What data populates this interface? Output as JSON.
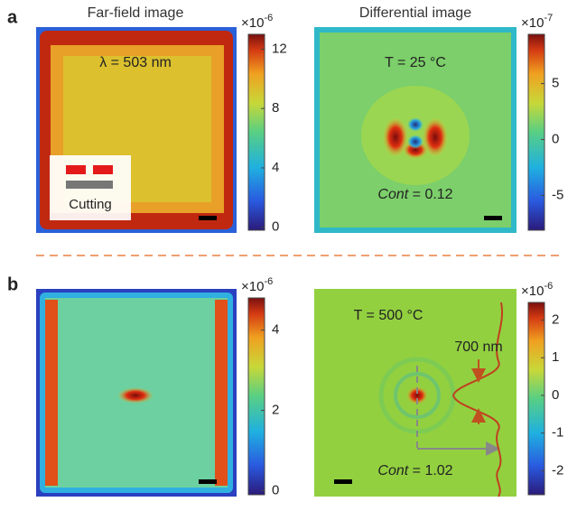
{
  "panels": [
    {
      "letter": "a",
      "images": [
        {
          "title": "Far-field image",
          "annotation": "λ = 503 nm",
          "inset_label": "Cutting",
          "colorbar": {
            "scale": "×10",
            "power": "-6",
            "clim": [
              -0.2,
              13
            ],
            "ticks": [
              0,
              4,
              8,
              12
            ]
          }
        },
        {
          "title": "Differential image",
          "annotation": "T = 25 °C",
          "contrast": {
            "italic": "Cont",
            "text": " = 0.12"
          },
          "colorbar": {
            "scale": "×10",
            "power": "-7",
            "clim": [
              -8.1,
              9.4
            ],
            "ticks": [
              -5,
              0,
              5
            ]
          }
        }
      ]
    },
    {
      "letter": "b",
      "images": [
        {
          "colorbar": {
            "scale": "×10",
            "power": "-6",
            "clim": [
              -0.1,
              4.8
            ],
            "ticks": [
              0,
              2,
              4
            ]
          }
        },
        {
          "annotation": "T = 500 °C",
          "width_label": "700 nm",
          "contrast": {
            "italic": "Cont",
            "text": " = 1.02"
          },
          "colorbar": {
            "scale": "×10",
            "power": "-6",
            "clim": [
              -2.64,
              2.47
            ],
            "ticks": [
              -2,
              -1,
              0,
              1,
              2
            ]
          }
        }
      ]
    }
  ]
}
